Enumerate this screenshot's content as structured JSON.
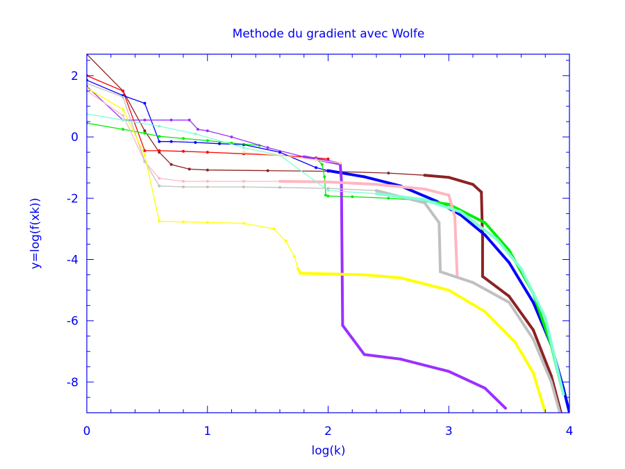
{
  "chart_data": {
    "type": "line",
    "title": "Methode du gradient avec Wolfe",
    "xlabel": "log(k)",
    "ylabel": "y=log(f(xk))",
    "xlim": [
      0,
      4
    ],
    "ylim": [
      -9,
      2.7
    ],
    "x_ticks": [
      0,
      1,
      2,
      3,
      4
    ],
    "x_tick_labels": [
      "0",
      "1",
      "2",
      "3",
      "4"
    ],
    "y_ticks": [
      2,
      0,
      -2,
      -4,
      -6,
      -8
    ],
    "y_tick_labels": [
      "2",
      "0",
      "-2",
      "-4",
      "-6",
      "-8"
    ],
    "grid": false,
    "axis_color": "#0000ee",
    "series": [
      {
        "color": "#8b2323",
        "x": [
          0,
          0.3,
          0.48,
          0.6,
          0.7,
          0.85,
          1.0,
          1.5,
          2.0,
          2.5,
          2.8,
          3.0,
          3.2,
          3.27,
          3.28,
          3.28,
          3.5,
          3.7,
          3.85,
          3.93
        ],
        "y": [
          2.7,
          1.5,
          0.2,
          -0.5,
          -0.9,
          -1.05,
          -1.08,
          -1.1,
          -1.12,
          -1.18,
          -1.25,
          -1.32,
          -1.55,
          -1.8,
          -3.3,
          -4.55,
          -5.2,
          -6.3,
          -7.8,
          -9.0
        ]
      },
      {
        "color": "#ff0000",
        "x": [
          0,
          0.3,
          0.48,
          0.6,
          0.8,
          1.0,
          1.3,
          1.6,
          1.9,
          2.0
        ],
        "y": [
          2.0,
          1.5,
          -0.45,
          -0.45,
          -0.47,
          -0.5,
          -0.55,
          -0.6,
          -0.68,
          -0.72
        ]
      },
      {
        "color": "#0000ff",
        "x": [
          0,
          0.3,
          0.48,
          0.6,
          0.7,
          0.9,
          1.1,
          1.3,
          1.6,
          1.9,
          2.0,
          2.3,
          2.6,
          2.9,
          3.1,
          3.3,
          3.5,
          3.7,
          3.85,
          3.95,
          4.0
        ],
        "y": [
          1.85,
          1.35,
          1.1,
          -0.15,
          -0.15,
          -0.18,
          -0.22,
          -0.25,
          -0.5,
          -1.0,
          -1.1,
          -1.3,
          -1.6,
          -2.1,
          -2.55,
          -3.2,
          -4.1,
          -5.4,
          -6.8,
          -8.2,
          -9.0
        ]
      },
      {
        "color": "#00ee00",
        "x": [
          0,
          0.3,
          0.48,
          0.6,
          0.8,
          1.0,
          1.2,
          1.43
        ],
        "y": [
          0.45,
          0.25,
          0.12,
          0.02,
          -0.05,
          -0.12,
          -0.2,
          -0.28
        ]
      },
      {
        "color": "#00ee00",
        "x": [
          1.9,
          1.95,
          1.97,
          1.98,
          2.0,
          2.2,
          2.5,
          2.8,
          3.0,
          3.3,
          3.5,
          3.7,
          3.85,
          3.95
        ],
        "y": [
          -0.7,
          -0.9,
          -1.3,
          -1.9,
          -1.93,
          -1.95,
          -2.0,
          -2.08,
          -2.2,
          -2.8,
          -3.7,
          -5.1,
          -6.8,
          -8.4
        ]
      },
      {
        "color": "#9b30ff",
        "x": [
          0,
          0.3,
          0.48,
          0.7,
          0.85,
          0.92,
          1.0,
          1.2,
          1.5,
          1.8,
          2.0,
          2.1,
          2.11,
          2.12,
          2.3,
          2.6,
          3.0,
          3.3,
          3.47
        ],
        "y": [
          1.65,
          0.55,
          0.55,
          0.55,
          0.55,
          0.25,
          0.2,
          0.0,
          -0.35,
          -0.65,
          -0.8,
          -0.88,
          -1.4,
          -6.15,
          -7.1,
          -7.25,
          -7.65,
          -8.2,
          -8.85
        ]
      },
      {
        "color": "#ffb6c1",
        "x": [
          0,
          0.3,
          0.48,
          0.6,
          0.8,
          1.0,
          1.3,
          1.6,
          2.0,
          2.4,
          2.8,
          3.0,
          3.05,
          3.07
        ],
        "y": [
          1.5,
          0.7,
          -0.8,
          -1.35,
          -1.45,
          -1.45,
          -1.45,
          -1.45,
          -1.47,
          -1.55,
          -1.7,
          -1.9,
          -2.6,
          -4.55
        ]
      },
      {
        "color": "#c0c0c0",
        "x": [
          0,
          0.3,
          0.48,
          0.6,
          0.8,
          1.0,
          1.3,
          1.6,
          2.0,
          2.4,
          2.8,
          2.92,
          2.93,
          3.2,
          3.5,
          3.7,
          3.85,
          3.92
        ],
        "y": [
          1.75,
          1.3,
          -0.8,
          -1.6,
          -1.63,
          -1.63,
          -1.63,
          -1.65,
          -1.68,
          -1.75,
          -2.15,
          -2.8,
          -4.4,
          -4.75,
          -5.4,
          -6.6,
          -8.0,
          -9.0
        ]
      },
      {
        "color": "#ffff00",
        "x": [
          0,
          0.3,
          0.48,
          0.6,
          0.8,
          1.0,
          1.3,
          1.55,
          1.65,
          1.72,
          1.75,
          1.77,
          2.0,
          2.3,
          2.6,
          3.0,
          3.3,
          3.55,
          3.7,
          3.8
        ],
        "y": [
          1.6,
          0.9,
          -0.6,
          -2.75,
          -2.77,
          -2.79,
          -2.82,
          -3.0,
          -3.4,
          -3.9,
          -4.3,
          -4.45,
          -4.47,
          -4.5,
          -4.6,
          -5.0,
          -5.7,
          -6.7,
          -7.7,
          -9.0
        ]
      },
      {
        "color": "#7fffd4",
        "x": [
          0,
          0.3,
          0.6,
          0.9,
          1.3,
          1.6,
          2.0,
          2.4,
          2.8,
          3.1,
          3.4,
          3.6,
          3.8,
          3.95
        ],
        "y": [
          0.75,
          0.55,
          0.35,
          0.1,
          -0.35,
          -0.6,
          -1.75,
          -1.85,
          -2.05,
          -2.45,
          -3.35,
          -4.3,
          -5.9,
          -8.4
        ]
      },
      {
        "color": "#ffdead",
        "x": [
          1.3,
          1.6,
          1.9,
          2.1
        ],
        "y": [
          -0.5,
          -0.6,
          -0.75,
          -0.85
        ]
      }
    ]
  }
}
